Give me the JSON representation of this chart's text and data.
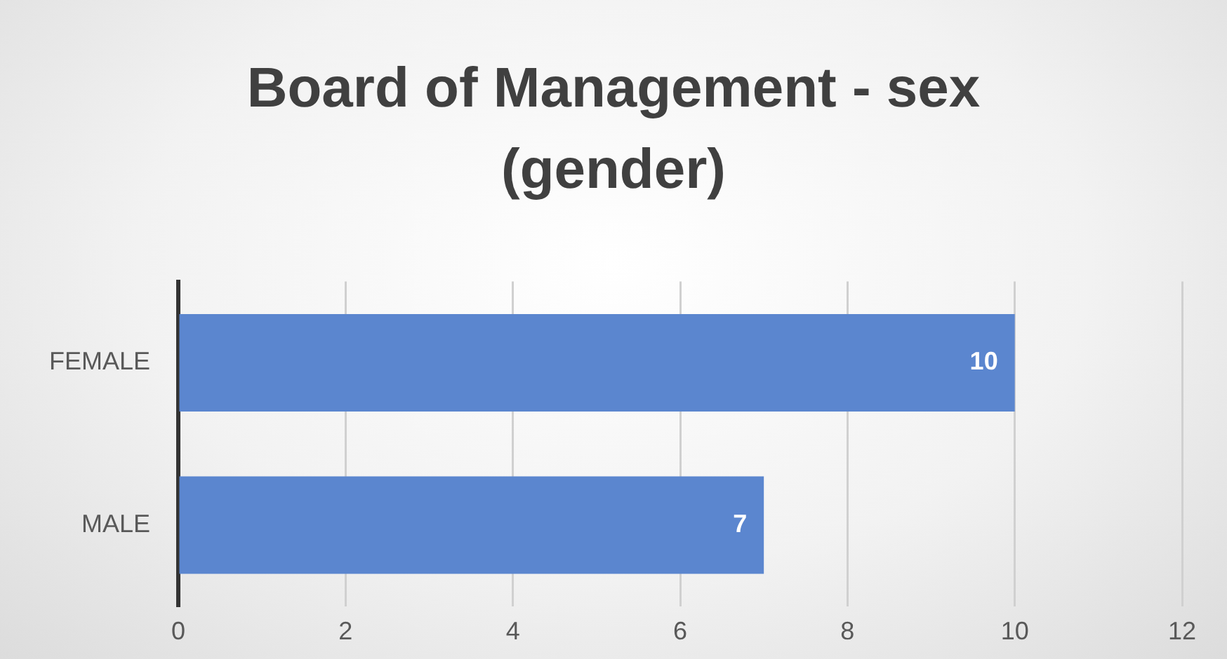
{
  "chart_data": {
    "type": "bar",
    "orientation": "horizontal",
    "title": "Board of Management - sex (gender)",
    "categories": [
      "FEMALE",
      "MALE"
    ],
    "values": [
      10,
      7
    ],
    "color": "#5b86cf",
    "xlim": [
      0,
      12
    ],
    "xticks": [
      0,
      2,
      4,
      6,
      8,
      10,
      12
    ],
    "grid": "x",
    "data_labels": true,
    "legend": false
  }
}
